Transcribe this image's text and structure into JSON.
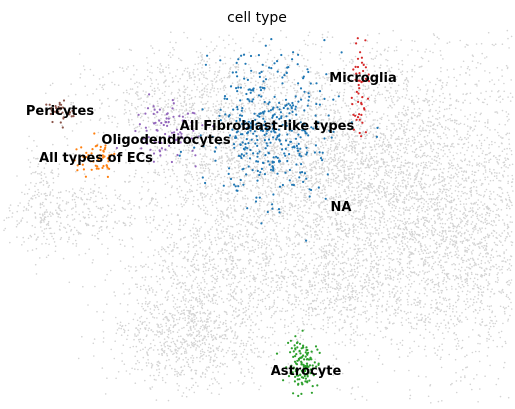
{
  "chart_data": {
    "type": "scatter",
    "title": "cell type",
    "xlabel": "",
    "ylabel": "",
    "legend": "on-data",
    "axes_visible": false,
    "grid": false,
    "background_color": "#d3d3d3",
    "clusters": [
      {
        "name": "NA",
        "color": "#d3d3d3"
      },
      {
        "name": "All Fibroblast-like types",
        "color": "#1f77b4"
      },
      {
        "name": "Microglia",
        "color": "#d62728"
      },
      {
        "name": "Pericytes",
        "color": "#8c564b"
      },
      {
        "name": "Oligodendrocytes",
        "color": "#9467bd"
      },
      {
        "name": "All types of ECs",
        "color": "#ff7f0e"
      },
      {
        "name": "Astrocyte",
        "color": "#2ca02c"
      }
    ]
  }
}
